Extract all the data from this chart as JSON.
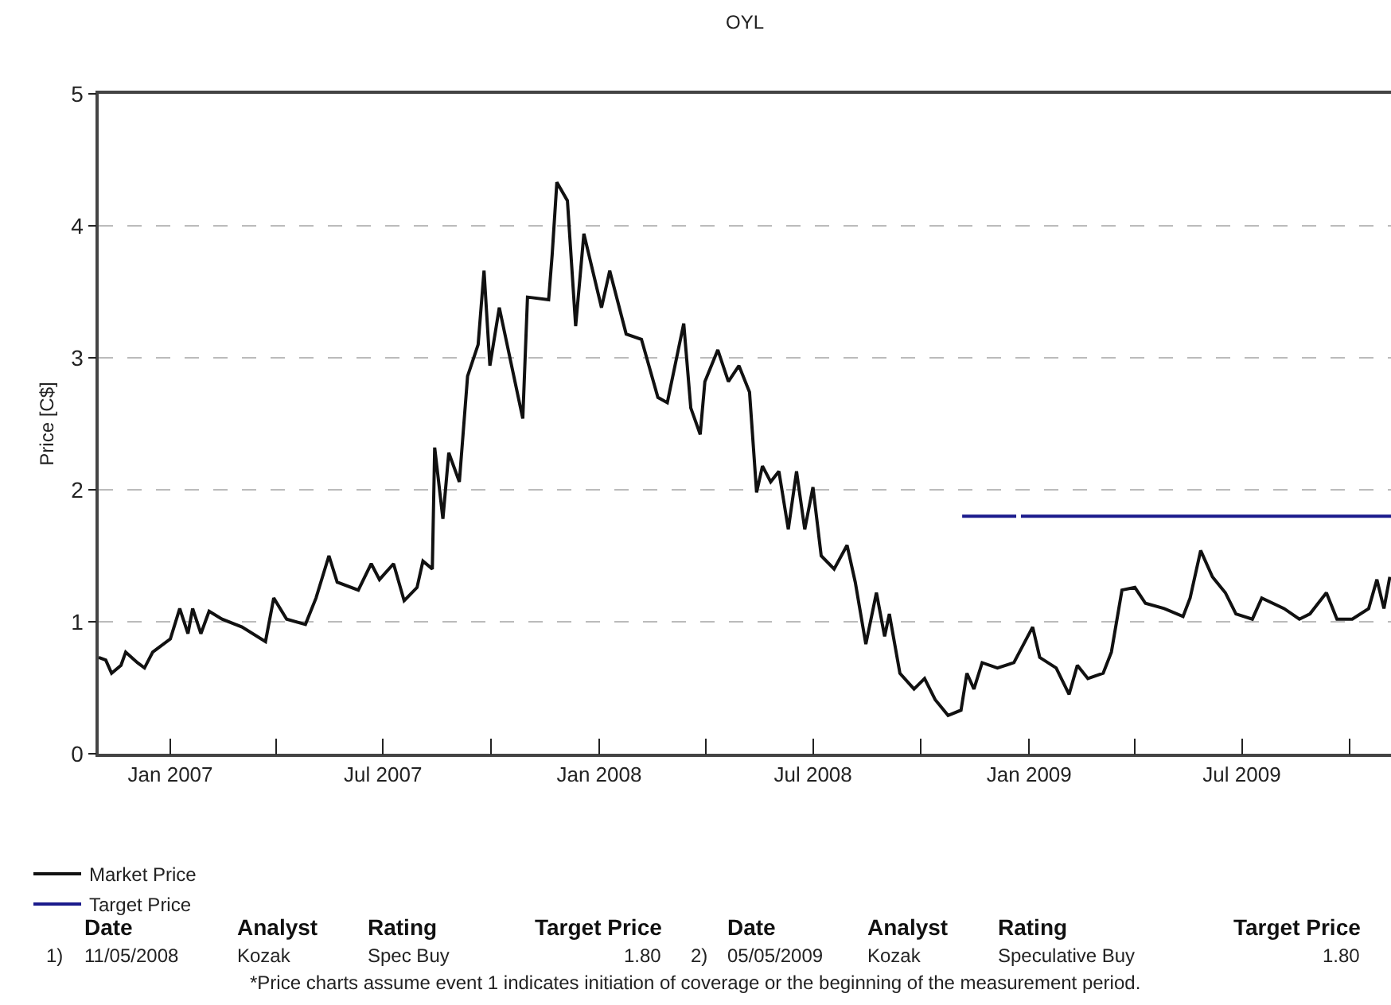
{
  "chart_data": {
    "type": "line",
    "title": "OYL",
    "ylabel": "Price [C$]",
    "xlim": [
      "2006-11-01",
      "2009-11-05"
    ],
    "xticks": [
      {
        "value": "2007-01",
        "label": "Jan 2007"
      },
      {
        "value": "2007-04",
        "label": null
      },
      {
        "value": "2007-07",
        "label": "Jul 2007"
      },
      {
        "value": "2007-10",
        "label": null
      },
      {
        "value": "2008-01",
        "label": "Jan 2008"
      },
      {
        "value": "2008-04",
        "label": null
      },
      {
        "value": "2008-07",
        "label": "Jul 2008"
      },
      {
        "value": "2008-10",
        "label": null
      },
      {
        "value": "2009-01",
        "label": "Jan 2009"
      },
      {
        "value": "2009-04",
        "label": null
      },
      {
        "value": "2009-07",
        "label": "Jul 2009"
      },
      {
        "value": "2009-10",
        "label": null
      }
    ],
    "ylim": [
      0,
      5
    ],
    "yticks": [
      0,
      1,
      2,
      3,
      4,
      5
    ],
    "grid": "y",
    "legend": "bottom left",
    "line_style": "solid",
    "marker": "none",
    "series": [
      {
        "name": "Market Price",
        "color": "#111111",
        "x": [
          "2006-11-01",
          "2006-11-07",
          "2006-11-12",
          "2006-11-20",
          "2006-11-24",
          "2006-12-04",
          "2006-12-10",
          "2006-12-17",
          "2007-01-01",
          "2007-01-09",
          "2007-01-16",
          "2007-01-20",
          "2007-01-27",
          "2007-02-03",
          "2007-02-14",
          "2007-03-03",
          "2007-03-23",
          "2007-03-30",
          "2007-04-10",
          "2007-04-26",
          "2007-05-05",
          "2007-05-16",
          "2007-05-23",
          "2007-06-10",
          "2007-06-21",
          "2007-06-28",
          "2007-07-10",
          "2007-07-19",
          "2007-07-30",
          "2007-08-04",
          "2007-08-12",
          "2007-08-14",
          "2007-08-21",
          "2007-08-26",
          "2007-09-04",
          "2007-09-11",
          "2007-09-20",
          "2007-09-25",
          "2007-09-30",
          "2007-10-08",
          "2007-10-28",
          "2007-11-01",
          "2007-11-19",
          "2007-11-22",
          "2007-11-26",
          "2007-12-05",
          "2007-12-12",
          "2007-12-19",
          "2008-01-03",
          "2008-01-10",
          "2008-01-24",
          "2008-02-06",
          "2008-02-20",
          "2008-02-28",
          "2008-03-13",
          "2008-03-19",
          "2008-03-27",
          "2008-03-31",
          "2008-04-11",
          "2008-04-20",
          "2008-04-29",
          "2008-05-08",
          "2008-05-14",
          "2008-05-19",
          "2008-05-26",
          "2008-06-02",
          "2008-06-10",
          "2008-06-17",
          "2008-06-24",
          "2008-07-01",
          "2008-07-08",
          "2008-07-19",
          "2008-07-30",
          "2008-08-06",
          "2008-08-15",
          "2008-08-24",
          "2008-08-31",
          "2008-09-04",
          "2008-09-13",
          "2008-09-25",
          "2008-10-04",
          "2008-10-13",
          "2008-10-24",
          "2008-11-04",
          "2008-11-09",
          "2008-11-15",
          "2008-11-22",
          "2008-12-05",
          "2008-12-19",
          "2009-01-04",
          "2009-01-10",
          "2009-01-24",
          "2009-02-04",
          "2009-02-11",
          "2009-02-20",
          "2009-03-05",
          "2009-03-12",
          "2009-03-21",
          "2009-04-01",
          "2009-04-10",
          "2009-04-26",
          "2009-05-12",
          "2009-05-18",
          "2009-05-27",
          "2009-06-06",
          "2009-06-17",
          "2009-06-26",
          "2009-07-10",
          "2009-07-18",
          "2009-08-06",
          "2009-08-19",
          "2009-08-28",
          "2009-09-11",
          "2009-09-20",
          "2009-10-03",
          "2009-10-17",
          "2009-10-24",
          "2009-10-30",
          "2009-11-04"
        ],
        "values": [
          0.73,
          0.71,
          0.61,
          0.67,
          0.77,
          0.69,
          0.65,
          0.77,
          0.87,
          1.1,
          0.91,
          1.1,
          0.91,
          1.08,
          1.02,
          0.96,
          0.85,
          1.18,
          1.02,
          0.98,
          1.18,
          1.5,
          1.3,
          1.24,
          1.44,
          1.32,
          1.44,
          1.16,
          1.26,
          1.46,
          1.4,
          2.32,
          1.78,
          2.28,
          2.06,
          2.86,
          3.1,
          3.66,
          2.94,
          3.38,
          2.54,
          3.46,
          3.44,
          3.78,
          4.33,
          4.19,
          3.24,
          3.94,
          3.38,
          3.66,
          3.18,
          3.14,
          2.7,
          2.66,
          3.26,
          2.62,
          2.42,
          2.82,
          3.06,
          2.82,
          2.94,
          2.74,
          1.98,
          2.18,
          2.06,
          2.14,
          1.7,
          2.14,
          1.7,
          2.02,
          1.5,
          1.4,
          1.58,
          1.3,
          0.83,
          1.22,
          0.89,
          1.06,
          0.61,
          0.49,
          0.57,
          0.41,
          0.29,
          0.33,
          0.61,
          0.49,
          0.69,
          0.65,
          0.69,
          0.96,
          0.73,
          0.65,
          0.45,
          0.67,
          0.57,
          0.61,
          0.77,
          1.24,
          1.26,
          1.14,
          1.1,
          1.04,
          1.18,
          1.54,
          1.34,
          1.22,
          1.06,
          1.02,
          1.18,
          1.1,
          1.02,
          1.06,
          1.22,
          1.02,
          1.02,
          1.1,
          1.32,
          1.1,
          1.34
        ]
      },
      {
        "name": "Target Price",
        "color": "#1a1a8c",
        "x": [
          "2008-11-05",
          "2008-12-21",
          "2008-12-23",
          "2008-12-25",
          "2009-11-05"
        ],
        "values": [
          1.8,
          1.8,
          null,
          1.8,
          1.8
        ]
      }
    ],
    "annotations": [
      "Date",
      "Analyst",
      "Rating",
      "Target Price",
      "Date",
      "Analyst",
      "Rating",
      "Target Price",
      "1)",
      "11/05/2008",
      "Kozak",
      "Spec Buy",
      "1.80",
      "2)",
      "05/05/2009",
      "Kozak",
      "Speculative Buy",
      "1.80",
      "*Price charts assume event 1 indicates initiation of coverage or the beginning of the measurement period."
    ]
  }
}
